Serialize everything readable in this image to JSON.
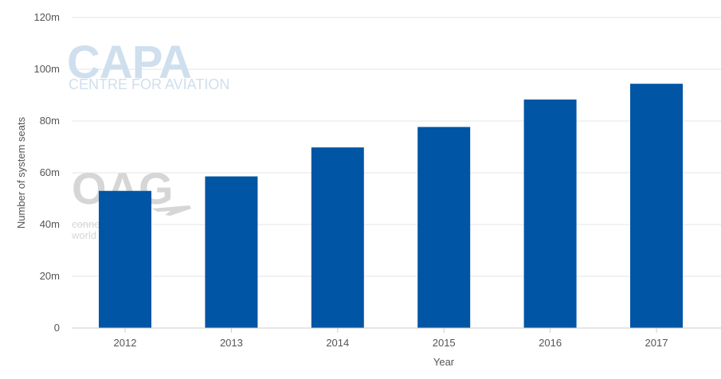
{
  "chart_data": {
    "type": "bar",
    "categories": [
      "2012",
      "2013",
      "2014",
      "2015",
      "2016",
      "2017"
    ],
    "values": [
      53,
      58.6,
      69.8,
      77.7,
      88.3,
      94.4
    ],
    "unit": "m",
    "xlabel": "Year",
    "ylabel": "Number of system seats",
    "ylim": [
      0,
      120
    ],
    "yticks": [
      {
        "value": 0,
        "label": "0"
      },
      {
        "value": 20,
        "label": "20m"
      },
      {
        "value": 40,
        "label": "40m"
      },
      {
        "value": 60,
        "label": "60m"
      },
      {
        "value": 80,
        "label": "80m"
      },
      {
        "value": 100,
        "label": "100m"
      },
      {
        "value": 120,
        "label": "120m"
      }
    ],
    "grid": "horizontal",
    "bar_color": "#0055a4",
    "grid_color": "#e6e6e6"
  },
  "watermarks": {
    "capa_logo": "CAPA",
    "capa_tagline": "CENTRE FOR AVIATION",
    "oag_logo": "OAG",
    "oag_tagline_1": "conne",
    "oag_tagline_2": "world"
  }
}
